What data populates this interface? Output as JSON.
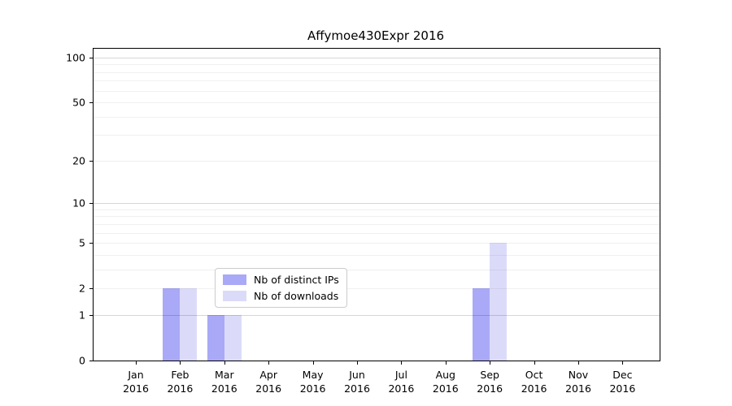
{
  "title": "Affymoe430Expr 2016",
  "colors": {
    "distinct_ips": "#a9a9f7",
    "downloads": "#dbdbf9",
    "axis": "#000000",
    "major_grid": "rgba(0,0,0,0.16)",
    "minor_grid": "rgba(0,0,0,0.06)"
  },
  "legend": {
    "items": [
      {
        "label": "Nb of distinct IPs",
        "color": "#a9a9f7"
      },
      {
        "label": "Nb of downloads",
        "color": "#dbdbf9"
      }
    ]
  },
  "chart_data": {
    "type": "bar",
    "title": "Affymoe430Expr 2016",
    "categories": [
      "Jan 2016",
      "Feb 2016",
      "Mar 2016",
      "Apr 2016",
      "May 2016",
      "Jun 2016",
      "Jul 2016",
      "Aug 2016",
      "Sep 2016",
      "Oct 2016",
      "Nov 2016",
      "Dec 2016"
    ],
    "series": [
      {
        "name": "Nb of distinct IPs",
        "color": "#a9a9f7",
        "values": [
          0,
          2,
          1,
          0,
          0,
          0,
          0,
          0,
          2,
          0,
          0,
          0
        ]
      },
      {
        "name": "Nb of downloads",
        "color": "#dbdbf9",
        "values": [
          0,
          2,
          1,
          0,
          0,
          0,
          0,
          0,
          5,
          0,
          0,
          0
        ]
      }
    ],
    "xlabel": "",
    "ylabel": "",
    "yscale": "log1p",
    "yticks": [
      0,
      1,
      2,
      5,
      10,
      20,
      50,
      100
    ],
    "major_gridlines": [
      1,
      10,
      100
    ],
    "minor_gridlines": [
      2,
      3,
      4,
      5,
      6,
      7,
      8,
      9,
      20,
      30,
      40,
      50,
      60,
      70,
      80,
      90
    ],
    "ylim": [
      0,
      115
    ],
    "grid": true,
    "legend_position": "lower center"
  }
}
